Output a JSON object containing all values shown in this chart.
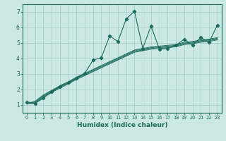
{
  "title": "",
  "xlabel": "Humidex (Indice chaleur)",
  "bg_color": "#cce8e4",
  "line_color": "#1a6b5a",
  "grid_color": "#a8ccc8",
  "xlim": [
    -0.5,
    23.5
  ],
  "ylim": [
    0.5,
    7.5
  ],
  "xticks": [
    0,
    1,
    2,
    3,
    4,
    5,
    6,
    7,
    8,
    9,
    10,
    11,
    12,
    13,
    14,
    15,
    16,
    17,
    18,
    19,
    20,
    21,
    22,
    23
  ],
  "yticks": [
    1,
    2,
    3,
    4,
    5,
    6,
    7
  ],
  "x": [
    0,
    1,
    2,
    3,
    4,
    5,
    6,
    7,
    8,
    9,
    10,
    11,
    12,
    13,
    14,
    15,
    16,
    17,
    18,
    19,
    20,
    21,
    22,
    23
  ],
  "main_curve": [
    1.2,
    1.1,
    1.45,
    1.85,
    2.2,
    2.45,
    2.75,
    3.05,
    3.9,
    4.05,
    5.45,
    5.1,
    6.55,
    7.05,
    4.65,
    6.1,
    4.6,
    4.65,
    4.85,
    5.25,
    4.85,
    5.35,
    5.05,
    6.15
  ],
  "trend_lines": [
    [
      1.1,
      1.1,
      1.5,
      1.8,
      2.1,
      2.35,
      2.65,
      2.9,
      3.15,
      3.4,
      3.65,
      3.9,
      4.15,
      4.4,
      4.5,
      4.6,
      4.65,
      4.7,
      4.75,
      4.9,
      4.95,
      5.05,
      5.1,
      5.2
    ],
    [
      1.1,
      1.15,
      1.55,
      1.85,
      2.15,
      2.4,
      2.7,
      2.95,
      3.2,
      3.45,
      3.7,
      3.95,
      4.2,
      4.45,
      4.55,
      4.65,
      4.7,
      4.75,
      4.8,
      4.95,
      5.0,
      5.1,
      5.15,
      5.25
    ],
    [
      1.1,
      1.2,
      1.6,
      1.9,
      2.2,
      2.45,
      2.75,
      3.0,
      3.25,
      3.5,
      3.75,
      4.0,
      4.25,
      4.5,
      4.6,
      4.7,
      4.75,
      4.8,
      4.85,
      5.0,
      5.05,
      5.15,
      5.2,
      5.3
    ],
    [
      1.1,
      1.25,
      1.65,
      1.95,
      2.25,
      2.5,
      2.8,
      3.05,
      3.3,
      3.55,
      3.8,
      4.05,
      4.3,
      4.55,
      4.65,
      4.75,
      4.8,
      4.85,
      4.9,
      5.05,
      5.1,
      5.2,
      5.25,
      5.35
    ]
  ]
}
